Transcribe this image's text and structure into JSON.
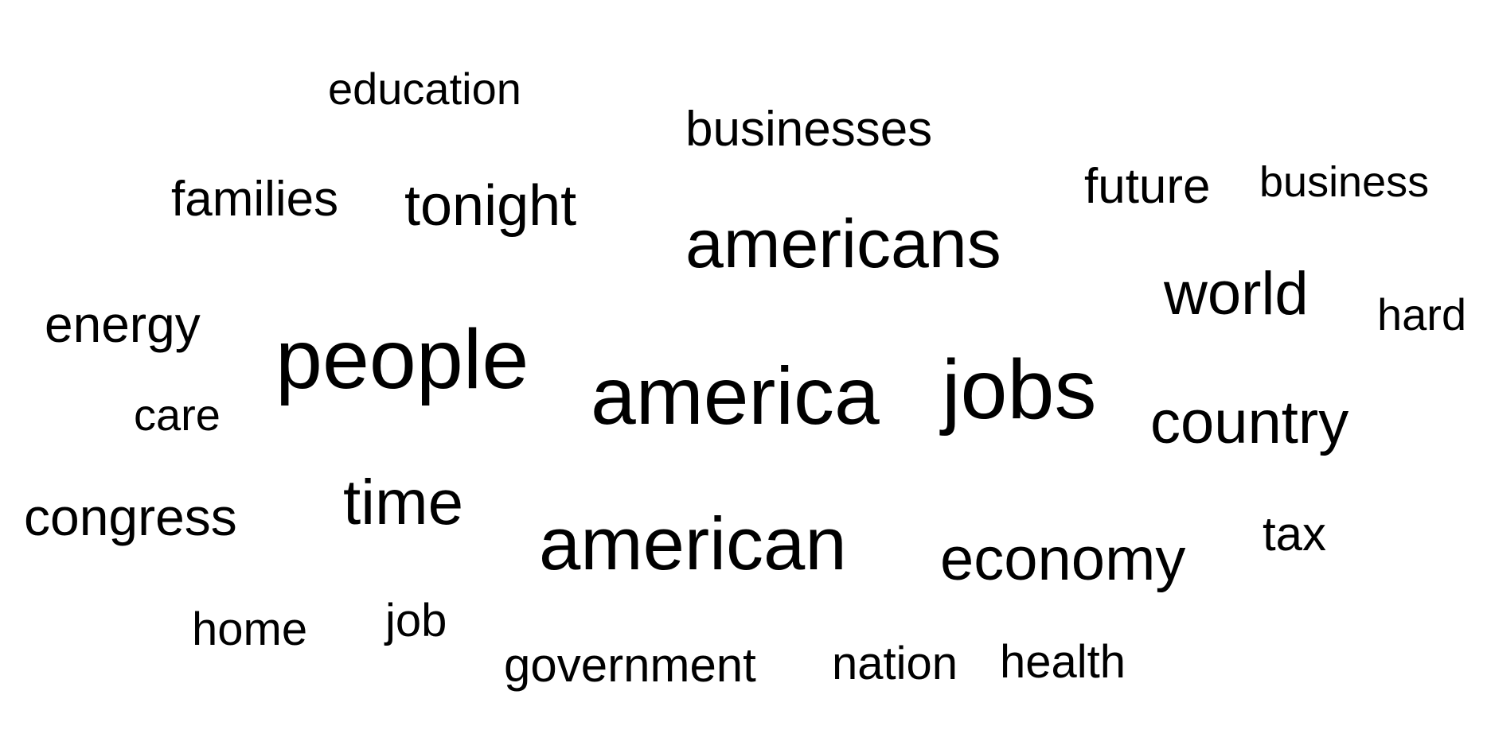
{
  "text_color": "#000000",
  "background_color": "#ffffff",
  "words": [
    {
      "text": "education",
      "weight": 2
    },
    {
      "text": "businesses",
      "weight": 3
    },
    {
      "text": "families",
      "weight": 3
    },
    {
      "text": "tonight",
      "weight": 4
    },
    {
      "text": "future",
      "weight": 3
    },
    {
      "text": "business",
      "weight": 2
    },
    {
      "text": "americans",
      "weight": 6
    },
    {
      "text": "world",
      "weight": 5
    },
    {
      "text": "hard",
      "weight": 2
    },
    {
      "text": "energy",
      "weight": 3
    },
    {
      "text": "people",
      "weight": 8
    },
    {
      "text": "america",
      "weight": 9
    },
    {
      "text": "jobs",
      "weight": 8
    },
    {
      "text": "care",
      "weight": 2
    },
    {
      "text": "country",
      "weight": 5
    },
    {
      "text": "congress",
      "weight": 4
    },
    {
      "text": "time",
      "weight": 5
    },
    {
      "text": "american",
      "weight": 8
    },
    {
      "text": "economy",
      "weight": 5
    },
    {
      "text": "tax",
      "weight": 2
    },
    {
      "text": "home",
      "weight": 2
    },
    {
      "text": "job",
      "weight": 2
    },
    {
      "text": "government",
      "weight": 3
    },
    {
      "text": "nation",
      "weight": 2
    },
    {
      "text": "health",
      "weight": 2
    }
  ]
}
